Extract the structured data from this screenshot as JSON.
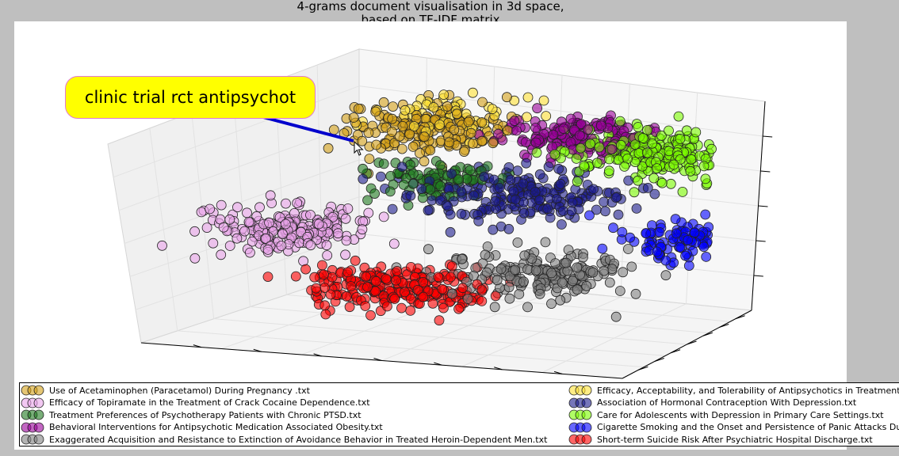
{
  "chart_data": {
    "type": "scatter",
    "title": "4-grams document visualisation in 3d space,",
    "subtitle": "based on TF-IDF matrix",
    "projection": "3d",
    "grid": true,
    "legend_placement": "bottom",
    "annotation": "clinic trial rct antipsychot",
    "series": [
      {
        "name": "Use of Acetaminophen (Paracetamol) During Pregnancy .txt",
        "color": "#d4a017",
        "cluster": {
          "x": -0.55,
          "y": 0.75,
          "z": 0.6,
          "spread": [
            0.18,
            0.18,
            0.12
          ],
          "n": 180
        }
      },
      {
        "name": "Efficacy of Topiramate in the Treatment of Crack Cocaine Dependence.txt",
        "color": "#e9a3e9",
        "cluster": {
          "x": -0.8,
          "y": -0.2,
          "z": -0.15,
          "spread": [
            0.16,
            0.18,
            0.1
          ],
          "n": 200
        }
      },
      {
        "name": "Treatment Preferences of Psychotherapy Patients with Chronic PTSD.txt",
        "color": "#1f7a1f",
        "cluster": {
          "x": -0.35,
          "y": 0.35,
          "z": 0.25,
          "spread": [
            0.15,
            0.15,
            0.1
          ],
          "n": 90
        }
      },
      {
        "name": "Behavioral Interventions for Antipsychotic Medication Associated Obesity.txt",
        "color": "#990099",
        "cluster": {
          "x": 0.05,
          "y": 0.95,
          "z": 0.55,
          "spread": [
            0.15,
            0.15,
            0.1
          ],
          "n": 170
        }
      },
      {
        "name": "Exaggerated Acquisition and Resistance to Extinction of Avoidance Behavior in Treated Heroin-Dependent Men.txt",
        "color": "#808080",
        "cluster": {
          "x": 0.4,
          "y": -0.3,
          "z": -0.4,
          "spread": [
            0.18,
            0.18,
            0.1
          ],
          "n": 190
        }
      },
      {
        "name": "Efficacy, Acceptability, and Tolerability of Antipsychotics in Treatment-Resistant Schizophrenia.txt",
        "color": "#ffe135",
        "cluster": {
          "x": -0.45,
          "y": 0.85,
          "z": 0.7,
          "spread": [
            0.15,
            0.15,
            0.1
          ],
          "n": 60
        }
      },
      {
        "name": "Association of Hormonal Contraception With Depression.txt",
        "color": "#1a1a8c",
        "cluster": {
          "x": 0.05,
          "y": 0.3,
          "z": 0.15,
          "spread": [
            0.22,
            0.2,
            0.12
          ],
          "n": 210
        }
      },
      {
        "name": "Care for Adolescents with Depression in Primary Care Settings.txt",
        "color": "#7cfc00",
        "cluster": {
          "x": 0.45,
          "y": 0.85,
          "z": 0.5,
          "spread": [
            0.18,
            0.18,
            0.12
          ],
          "n": 220
        }
      },
      {
        "name": "Cigarette Smoking and the Onset and Persistence of Panic Attacks During Mid-Adulthood.txt",
        "color": "#0000ff",
        "cluster": {
          "x": 0.9,
          "y": 0.2,
          "z": -0.15,
          "spread": [
            0.15,
            0.18,
            0.1
          ],
          "n": 140
        }
      },
      {
        "name": "Short-term Suicide Risk After Psychiatric Hospital Discharge.txt",
        "color": "#ff0000",
        "cluster": {
          "x": -0.15,
          "y": -0.55,
          "z": -0.55,
          "spread": [
            0.2,
            0.18,
            0.1
          ],
          "n": 230
        }
      }
    ]
  }
}
